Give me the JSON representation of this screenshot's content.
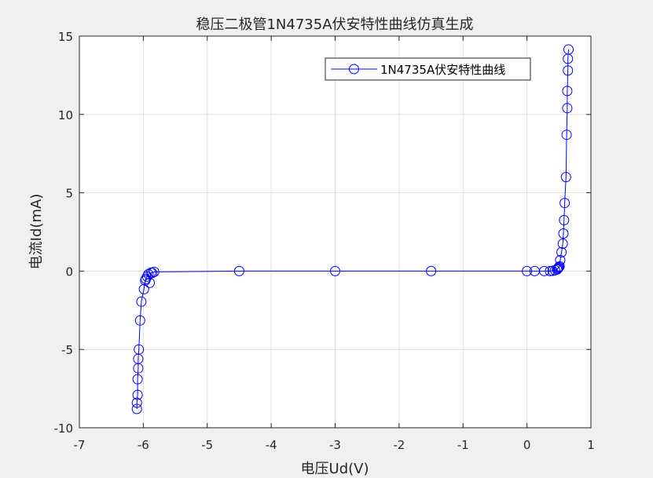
{
  "chart_data": {
    "type": "line",
    "title": "稳压二极管1N4735A伏安特性曲线仿真生成",
    "xlabel": "电压Ud(V)",
    "ylabel": "电流Id(mA)",
    "xlim": [
      -7,
      1
    ],
    "ylim": [
      -10,
      15
    ],
    "xticks": [
      -7,
      -6,
      -5,
      -4,
      -3,
      -2,
      -1,
      0,
      1
    ],
    "xtick_labels": [
      "-7",
      "-6",
      "-5",
      "-4",
      "-3",
      "-2",
      "-1",
      "0",
      "1"
    ],
    "yticks": [
      -10,
      -5,
      0,
      5,
      10,
      15
    ],
    "ytick_labels": [
      "-10",
      "-5",
      "0",
      "5",
      "10",
      "15"
    ],
    "grid": true,
    "legend_position": "top-right",
    "background_color": "#f0f0f0",
    "axes_color": "#ffffff",
    "series": [
      {
        "name": "1N4735A伏安特性曲线",
        "color": "#0000ff",
        "marker": "circle",
        "x": [
          -6.1,
          -6.1,
          -6.09,
          -6.09,
          -6.08,
          -6.08,
          -6.07,
          -6.05,
          -6.03,
          -5.99,
          -5.97,
          -5.96,
          -5.94,
          -5.92,
          -5.9,
          -5.88,
          -5.86,
          -5.83,
          -4.5,
          -3.0,
          -1.5,
          0.0,
          0.12,
          0.27,
          0.36,
          0.4,
          0.44,
          0.47,
          0.48,
          0.49,
          0.5,
          0.51,
          0.52,
          0.54,
          0.56,
          0.57,
          0.58,
          0.59,
          0.61,
          0.62,
          0.63,
          0.63,
          0.64,
          0.64,
          0.65
        ],
        "y": [
          -8.8,
          -8.4,
          -7.9,
          -6.9,
          -6.2,
          -5.6,
          -5.0,
          -3.15,
          -1.95,
          -1.15,
          -0.6,
          -0.5,
          -0.35,
          -0.2,
          -0.75,
          -0.1,
          -0.12,
          -0.05,
          0.0,
          0.0,
          0.0,
          0.0,
          0.0,
          0.0,
          0.0,
          0.02,
          0.05,
          0.1,
          0.15,
          0.2,
          0.25,
          0.3,
          0.7,
          1.2,
          1.75,
          2.4,
          3.25,
          4.35,
          6.0,
          8.7,
          10.4,
          11.5,
          12.8,
          13.55,
          14.15
        ]
      }
    ]
  }
}
